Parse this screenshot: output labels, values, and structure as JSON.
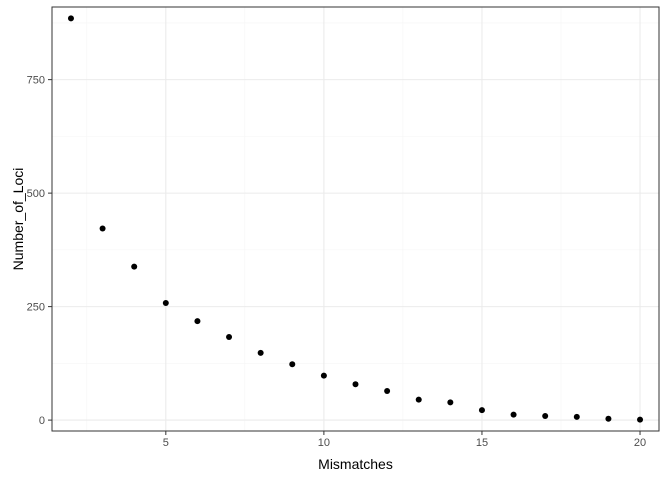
{
  "chart_data": {
    "type": "scatter",
    "xlabel": "Mismatches",
    "ylabel": "Number_of_Loci",
    "xlim": [
      1.4,
      20.6
    ],
    "ylim": [
      -24,
      910
    ],
    "x_ticks": [
      5,
      10,
      15,
      20
    ],
    "x_minor_ticks": [
      2.5,
      7.5,
      12.5,
      17.5
    ],
    "y_ticks": [
      0,
      250,
      500,
      750
    ],
    "y_minor_ticks": [
      125,
      375,
      625,
      875
    ],
    "grid": true,
    "points": [
      {
        "x": 2,
        "y": 885
      },
      {
        "x": 3,
        "y": 422
      },
      {
        "x": 4,
        "y": 338
      },
      {
        "x": 5,
        "y": 258
      },
      {
        "x": 6,
        "y": 218
      },
      {
        "x": 7,
        "y": 183
      },
      {
        "x": 8,
        "y": 148
      },
      {
        "x": 9,
        "y": 123
      },
      {
        "x": 10,
        "y": 98
      },
      {
        "x": 11,
        "y": 79
      },
      {
        "x": 12,
        "y": 64
      },
      {
        "x": 13,
        "y": 45
      },
      {
        "x": 14,
        "y": 39
      },
      {
        "x": 15,
        "y": 22
      },
      {
        "x": 16,
        "y": 12
      },
      {
        "x": 17,
        "y": 9
      },
      {
        "x": 18,
        "y": 7
      },
      {
        "x": 19,
        "y": 3
      },
      {
        "x": 20,
        "y": 1
      }
    ],
    "colors": {
      "point": "#000000",
      "major_grid": "#ebebeb",
      "minor_grid": "#f5f5f5",
      "border": "#333333",
      "tick_text": "#4d4d4d"
    }
  }
}
